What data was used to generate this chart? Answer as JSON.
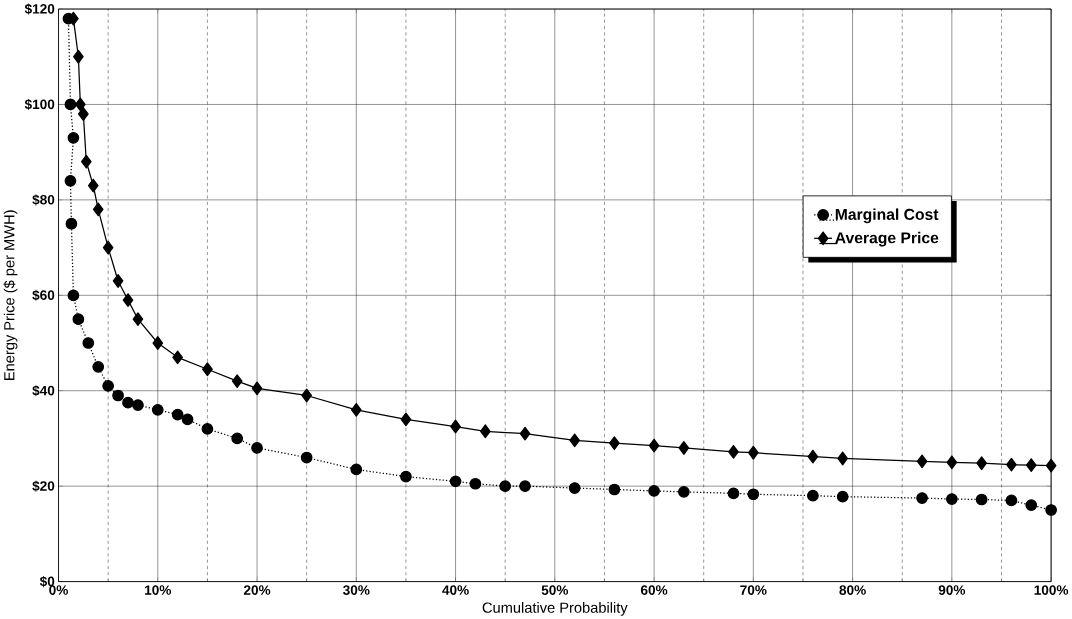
{
  "chart_data": {
    "type": "line",
    "xlabel": "Cumulative Probability",
    "ylabel": "Energy Price ($ per MWH)",
    "xlim": [
      0,
      100
    ],
    "ylim": [
      0,
      120
    ],
    "xticks": [
      {
        "value": 0,
        "label": "0%"
      },
      {
        "value": 10,
        "label": "10%"
      },
      {
        "value": 20,
        "label": "20%"
      },
      {
        "value": 30,
        "label": "30%"
      },
      {
        "value": 40,
        "label": "40%"
      },
      {
        "value": 50,
        "label": "50%"
      },
      {
        "value": 60,
        "label": "60%"
      },
      {
        "value": 70,
        "label": "70%"
      },
      {
        "value": 80,
        "label": "80%"
      },
      {
        "value": 90,
        "label": "90%"
      },
      {
        "value": 100,
        "label": "100%"
      }
    ],
    "yticks": [
      {
        "value": 0,
        "label": "$0"
      },
      {
        "value": 20,
        "label": "$20"
      },
      {
        "value": 40,
        "label": "$40"
      },
      {
        "value": 60,
        "label": "$60"
      },
      {
        "value": 80,
        "label": "$80"
      },
      {
        "value": 100,
        "label": "$100"
      },
      {
        "value": 120,
        "label": "$120"
      }
    ],
    "grid": true,
    "legend": "right",
    "series": [
      {
        "name": "Marginal Cost",
        "color": "#000000",
        "marker": "circle",
        "line_style": "dotted",
        "x": [
          1.0,
          1.2,
          1.5,
          1.2,
          1.3,
          1.5,
          2,
          3,
          4,
          5,
          6,
          7,
          8,
          10,
          12,
          13,
          15,
          18,
          20,
          25,
          30,
          35,
          40,
          42,
          45,
          47,
          52,
          56,
          60,
          63,
          68,
          70,
          76,
          79,
          87,
          90,
          93,
          96,
          98,
          100
        ],
        "values": [
          118,
          100,
          93,
          84,
          75,
          60,
          55,
          50,
          45,
          41,
          39,
          37.5,
          37,
          36,
          35,
          34,
          32,
          30,
          28,
          26,
          23.5,
          22,
          21,
          20.5,
          20,
          20,
          19.6,
          19.3,
          19,
          18.8,
          18.5,
          18.3,
          18,
          17.8,
          17.5,
          17.3,
          17.2,
          17,
          16,
          15
        ]
      },
      {
        "name": "Average Price",
        "color": "#000000",
        "marker": "diamond",
        "line_style": "solid",
        "x": [
          1.5,
          2,
          2.2,
          2.5,
          2.8,
          3.5,
          4,
          5,
          6,
          7,
          8,
          10,
          12,
          15,
          18,
          20,
          25,
          30,
          35,
          40,
          43,
          47,
          52,
          56,
          60,
          63,
          68,
          70,
          76,
          79,
          87,
          90,
          93,
          96,
          98,
          100
        ],
        "values": [
          118,
          110,
          100,
          98,
          88,
          83,
          78,
          70,
          63,
          59,
          55,
          50,
          47,
          44.5,
          42,
          40.5,
          39,
          36,
          34,
          32.5,
          31.5,
          31,
          29.6,
          29,
          28.5,
          28,
          27.2,
          27,
          26.2,
          25.8,
          25.2,
          25,
          24.8,
          24.5,
          24.4,
          24.3
        ]
      }
    ]
  }
}
